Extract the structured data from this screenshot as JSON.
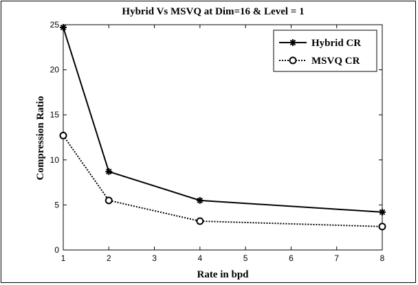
{
  "chart_data": {
    "type": "line",
    "title": "Hybrid Vs MSVQ at Dim=16 & Level = 1",
    "xlabel": "Rate in bpd",
    "ylabel": "Compression Ratio",
    "xlim": [
      1,
      8
    ],
    "ylim": [
      0,
      25
    ],
    "xticks": [
      1,
      2,
      3,
      4,
      5,
      6,
      7,
      8
    ],
    "yticks": [
      0,
      5,
      10,
      15,
      20,
      25
    ],
    "grid": false,
    "legend_position": "top-right",
    "series": [
      {
        "name": "Hybrid CR",
        "x": [
          1,
          2,
          4,
          8
        ],
        "y": [
          24.7,
          8.7,
          5.5,
          4.2
        ],
        "style": "solid",
        "marker": "star",
        "color": "#000000"
      },
      {
        "name": "MSVQ CR",
        "x": [
          1,
          2,
          4,
          8
        ],
        "y": [
          12.7,
          5.5,
          3.2,
          2.6
        ],
        "style": "dotted",
        "marker": "circle",
        "color": "#000000"
      }
    ]
  }
}
